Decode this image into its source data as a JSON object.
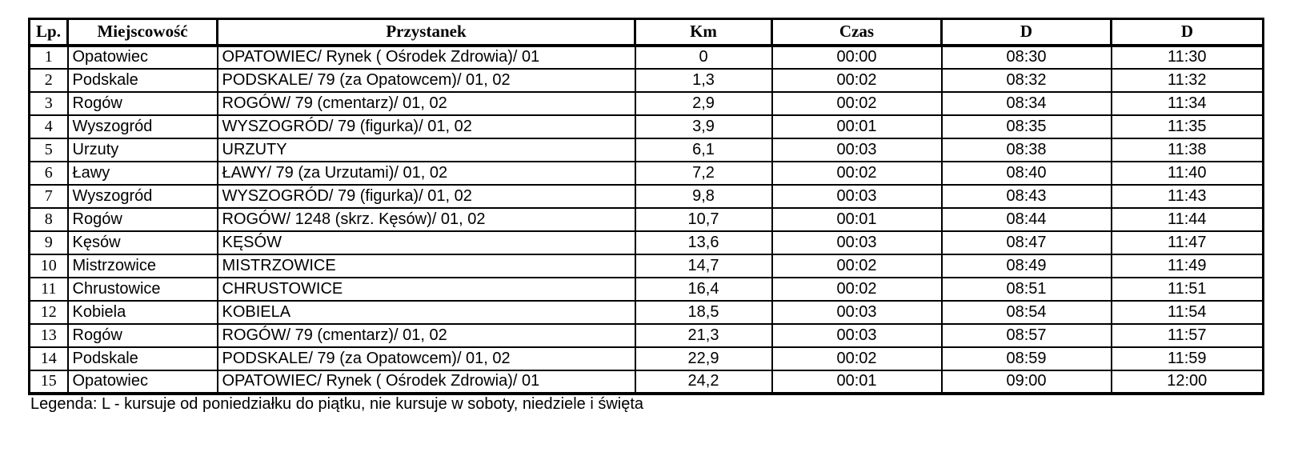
{
  "colors": {
    "background": "#ffffff",
    "text": "#000000",
    "border": "#000000"
  },
  "table": {
    "columns": [
      {
        "label": "Lp."
      },
      {
        "label": "Miejscowość"
      },
      {
        "label": "Przystanek"
      },
      {
        "label": "Km"
      },
      {
        "label": "Czas"
      },
      {
        "label": "D"
      },
      {
        "label": "D"
      }
    ],
    "rows": [
      {
        "lp": "1",
        "miejscowosc": "Opatowiec",
        "przystanek": "OPATOWIEC/ Rynek ( Ośrodek Zdrowia)/ 01",
        "km": "0",
        "czas": "00:00",
        "d1": "08:30",
        "d2": "11:30"
      },
      {
        "lp": "2",
        "miejscowosc": "Podskale",
        "przystanek": "PODSKALE/ 79 (za Opatowcem)/ 01, 02",
        "km": "1,3",
        "czas": "00:02",
        "d1": "08:32",
        "d2": "11:32"
      },
      {
        "lp": "3",
        "miejscowosc": "Rogów",
        "przystanek": "ROGÓW/ 79 (cmentarz)/ 01, 02",
        "km": "2,9",
        "czas": "00:02",
        "d1": "08:34",
        "d2": "11:34"
      },
      {
        "lp": "4",
        "miejscowosc": "Wyszogród",
        "przystanek": "WYSZOGRÓD/ 79 (figurka)/ 01, 02",
        "km": "3,9",
        "czas": "00:01",
        "d1": "08:35",
        "d2": "11:35"
      },
      {
        "lp": "5",
        "miejscowosc": "Urzuty",
        "przystanek": "URZUTY",
        "km": "6,1",
        "czas": "00:03",
        "d1": "08:38",
        "d2": "11:38"
      },
      {
        "lp": "6",
        "miejscowosc": "Ławy",
        "przystanek": "ŁAWY/ 79 (za Urzutami)/ 01, 02",
        "km": "7,2",
        "czas": "00:02",
        "d1": "08:40",
        "d2": "11:40"
      },
      {
        "lp": "7",
        "miejscowosc": "Wyszogród",
        "przystanek": "WYSZOGRÓD/ 79 (figurka)/ 01, 02",
        "km": "9,8",
        "czas": "00:03",
        "d1": "08:43",
        "d2": "11:43"
      },
      {
        "lp": "8",
        "miejscowosc": "Rogów",
        "przystanek": "ROGÓW/ 1248 (skrz. Kęsów)/ 01, 02",
        "km": "10,7",
        "czas": "00:01",
        "d1": "08:44",
        "d2": "11:44"
      },
      {
        "lp": "9",
        "miejscowosc": "Kęsów",
        "przystanek": "KĘSÓW",
        "km": "13,6",
        "czas": "00:03",
        "d1": "08:47",
        "d2": "11:47"
      },
      {
        "lp": "10",
        "miejscowosc": "Mistrzowice",
        "przystanek": "MISTRZOWICE",
        "km": "14,7",
        "czas": "00:02",
        "d1": "08:49",
        "d2": "11:49"
      },
      {
        "lp": "11",
        "miejscowosc": "Chrustowice",
        "przystanek": "CHRUSTOWICE",
        "km": "16,4",
        "czas": "00:02",
        "d1": "08:51",
        "d2": "11:51"
      },
      {
        "lp": "12",
        "miejscowosc": "Kobiela",
        "przystanek": "KOBIELA",
        "km": "18,5",
        "czas": "00:03",
        "d1": "08:54",
        "d2": "11:54"
      },
      {
        "lp": "13",
        "miejscowosc": "Rogów",
        "przystanek": "ROGÓW/ 79 (cmentarz)/ 01, 02",
        "km": "21,3",
        "czas": "00:03",
        "d1": "08:57",
        "d2": "11:57"
      },
      {
        "lp": "14",
        "miejscowosc": "Podskale",
        "przystanek": "PODSKALE/ 79 (za Opatowcem)/ 01, 02",
        "km": "22,9",
        "czas": "00:02",
        "d1": "08:59",
        "d2": "11:59"
      },
      {
        "lp": "15",
        "miejscowosc": "Opatowiec",
        "przystanek": "OPATOWIEC/ Rynek ( Ośrodek Zdrowia)/ 01",
        "km": "24,2",
        "czas": "00:01",
        "d1": "09:00",
        "d2": "12:00"
      }
    ]
  },
  "legend": "Legenda: L - kursuje od poniedziałku do piątku, nie kursuje w soboty, niedziele i święta"
}
